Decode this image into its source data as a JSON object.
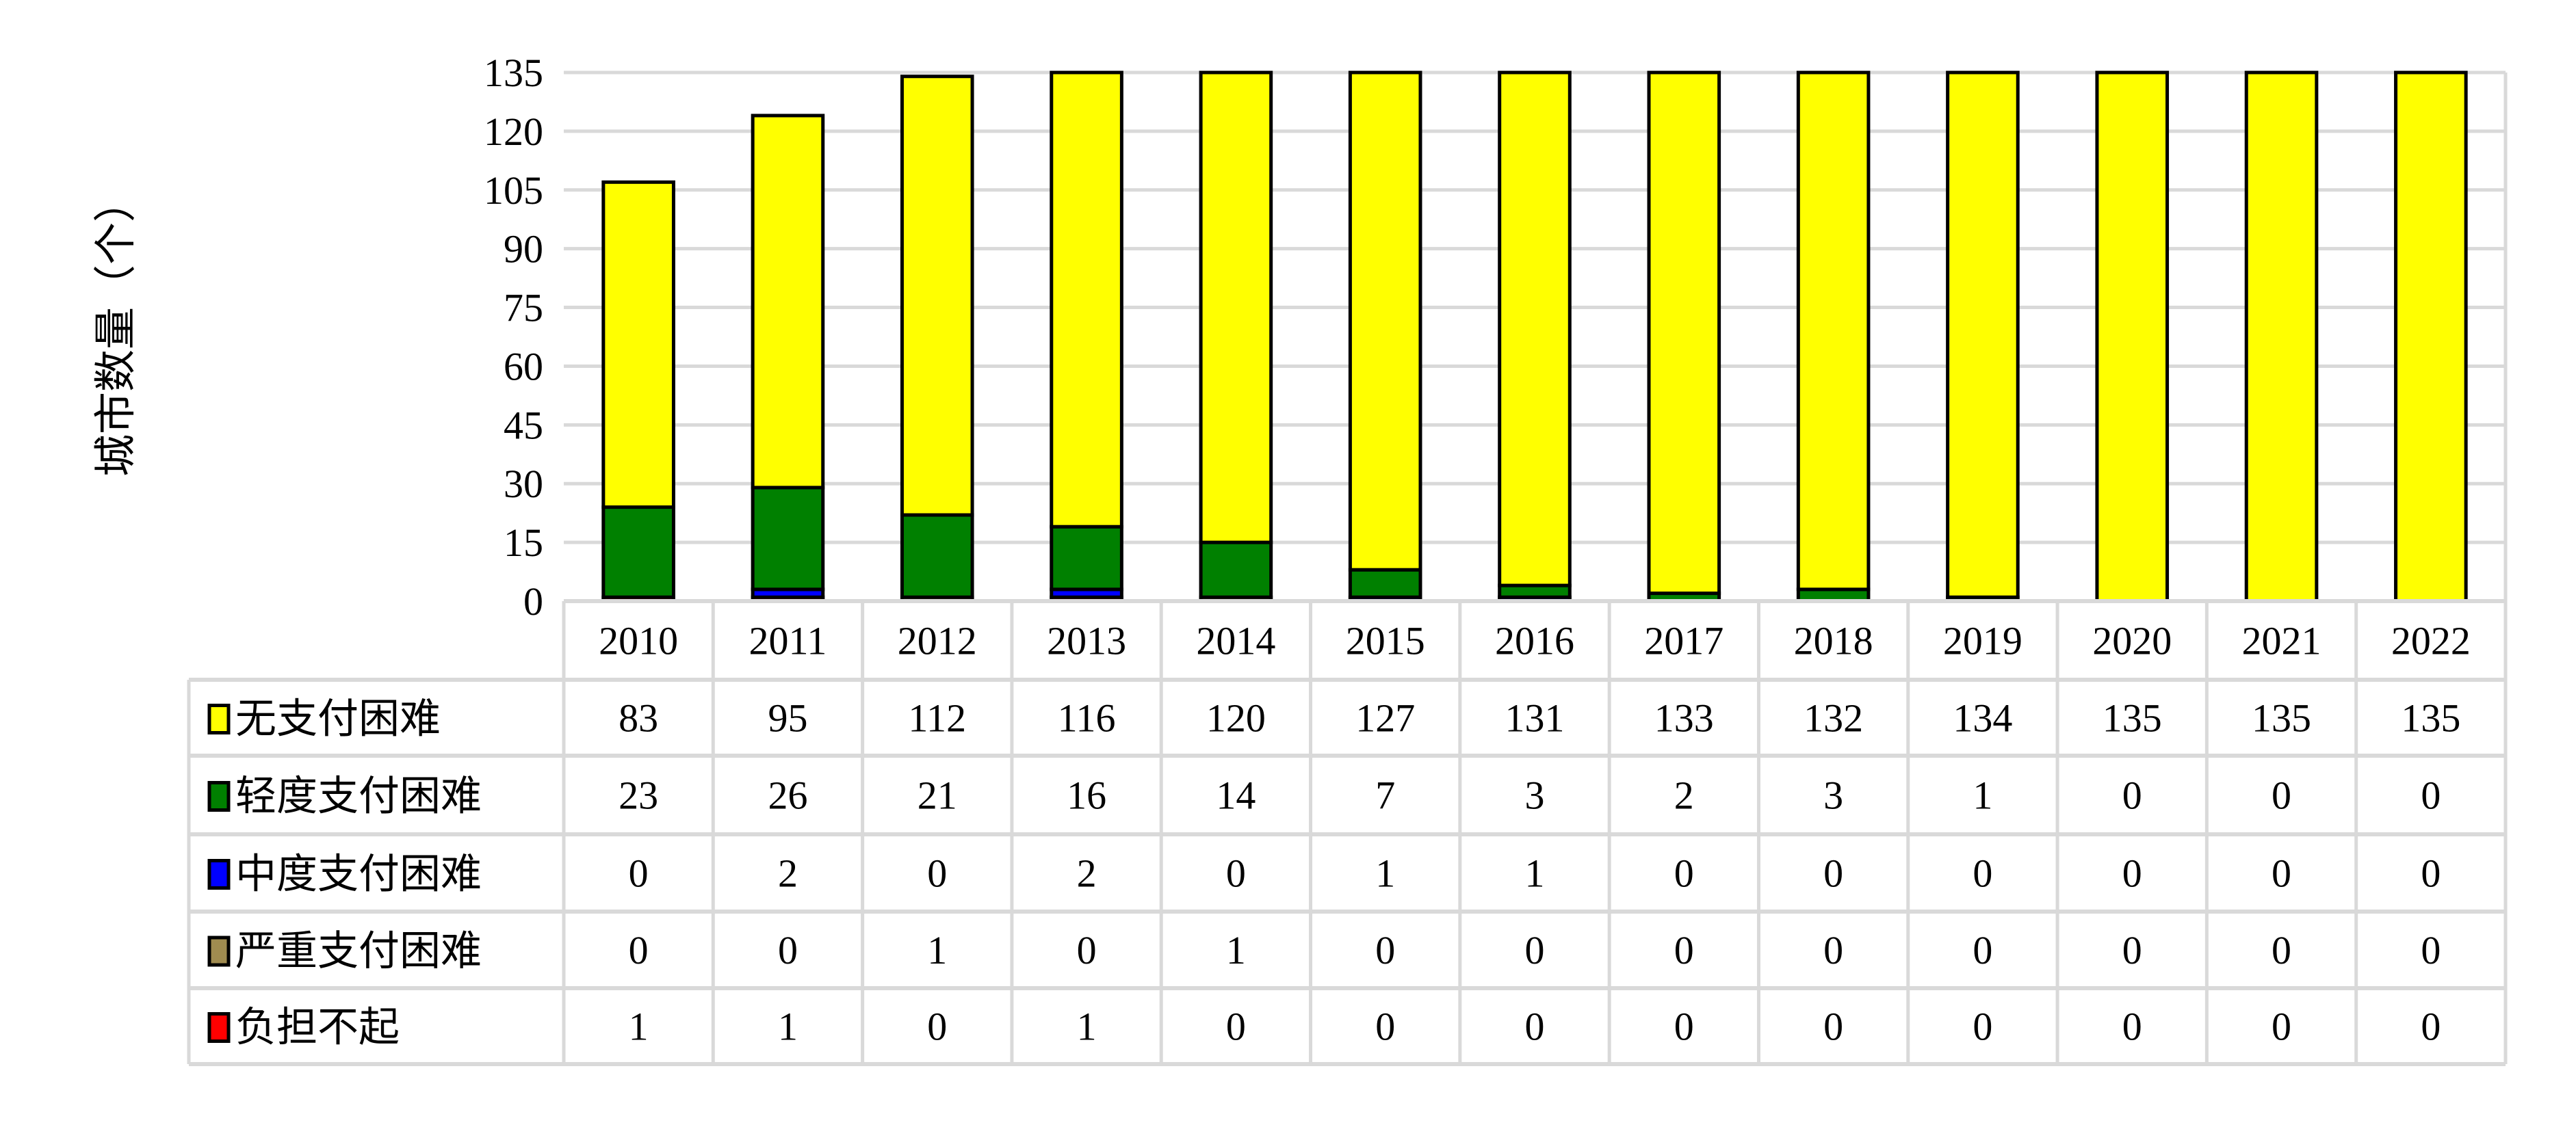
{
  "chart_data": {
    "type": "bar",
    "stacked": true,
    "categories": [
      "2010",
      "2011",
      "2012",
      "2013",
      "2014",
      "2015",
      "2016",
      "2017",
      "2018",
      "2019",
      "2020",
      "2021",
      "2022"
    ],
    "ylabel": "城市数量（个）",
    "ylim": [
      0,
      135
    ],
    "yticks": [
      0,
      15,
      30,
      45,
      60,
      75,
      90,
      105,
      120,
      135
    ],
    "grid": true,
    "legend": "data-table",
    "series": [
      {
        "name": "无支付困难",
        "color": "#ffff00",
        "values": [
          83,
          95,
          112,
          116,
          120,
          127,
          131,
          133,
          132,
          134,
          135,
          135,
          135
        ]
      },
      {
        "name": "轻度支付困难",
        "color": "#008000",
        "values": [
          23,
          26,
          21,
          16,
          14,
          7,
          3,
          2,
          3,
          1,
          0,
          0,
          0
        ]
      },
      {
        "name": "中度支付困难",
        "color": "#0000ff",
        "values": [
          0,
          2,
          0,
          2,
          0,
          1,
          1,
          0,
          0,
          0,
          0,
          0,
          0
        ]
      },
      {
        "name": "严重支付困难",
        "color": "#a08c50",
        "values": [
          0,
          0,
          1,
          0,
          1,
          0,
          0,
          0,
          0,
          0,
          0,
          0,
          0
        ]
      },
      {
        "name": "负担不起",
        "color": "#ff0000",
        "values": [
          1,
          1,
          0,
          1,
          0,
          0,
          0,
          0,
          0,
          0,
          0,
          0,
          0
        ]
      }
    ]
  }
}
